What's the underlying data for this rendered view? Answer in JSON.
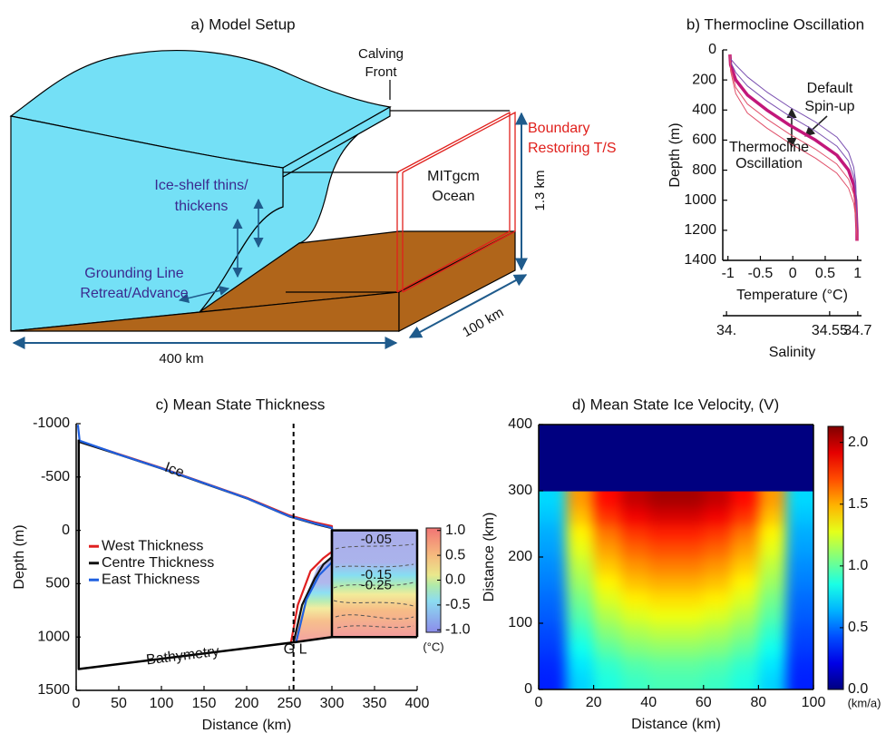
{
  "diagram": {
    "title": "a) Model Setup",
    "calving_front": [
      "Calving",
      "Front"
    ],
    "boundary": [
      "Boundary",
      "Restoring T/S"
    ],
    "ocean": [
      "MITgcm",
      "Ocean"
    ],
    "height": "1.3 km",
    "ice_shelf": [
      "Ice-shelf thins/",
      "thickens"
    ],
    "grounding_line": [
      "Grounding Line",
      "Retreat/Advance"
    ],
    "length": "400 km",
    "width": "100 km"
  },
  "chart_data": [
    {
      "type": "line",
      "title": "b) Thermocline Oscillation",
      "xlabel": "Temperature (°C)",
      "ylabel": "Depth (m)",
      "xlim": [
        -1.08,
        1.06
      ],
      "xticks": [
        -1,
        -0.5,
        0,
        0.5,
        1
      ],
      "ylim": [
        0,
        1400
      ],
      "yticks": [
        0,
        200,
        400,
        600,
        800,
        1000,
        1200,
        1400
      ],
      "invert_y": true,
      "x2label": "Salinity",
      "x2lim": [
        33.98,
        34.72
      ],
      "x2ticks": [
        {
          "value": 34,
          "label": "34."
        },
        34.55,
        34.7
      ],
      "annotations": [
        "Default",
        "Spin-up",
        "Thermocline",
        "Oscillation"
      ],
      "series": [
        {
          "color": "#c2177a",
          "x": [
            -0.97,
            -0.96,
            -0.88,
            -0.7,
            -0.4,
            -0.05,
            0.35,
            0.68,
            0.86,
            0.94,
            0.97,
            0.98,
            0.99,
            0.99
          ],
          "values": [
            30,
            100,
            200,
            300,
            400,
            500,
            600,
            700,
            800,
            900,
            1000,
            1100,
            1200,
            1270
          ]
        },
        {
          "color": "#7a4fb0",
          "x": [
            -0.97,
            -0.96,
            -0.88,
            -0.7,
            -0.4,
            -0.05,
            0.35,
            0.68,
            0.86,
            0.94,
            0.97,
            0.98,
            0.99,
            0.99
          ],
          "values": [
            30,
            60,
            100,
            180,
            280,
            380,
            480,
            580,
            680,
            780,
            880,
            1000,
            1150,
            1270
          ]
        },
        {
          "color": "#7a4fb0",
          "x": [
            -0.97,
            -0.96,
            -0.88,
            -0.7,
            -0.4,
            -0.05,
            0.35,
            0.68,
            0.86,
            0.94,
            0.97,
            0.98,
            0.99,
            0.99
          ],
          "values": [
            30,
            80,
            150,
            240,
            340,
            440,
            540,
            640,
            740,
            840,
            940,
            1050,
            1170,
            1270
          ]
        },
        {
          "color": "#e0506a",
          "x": [
            -0.97,
            -0.96,
            -0.88,
            -0.7,
            -0.4,
            -0.05,
            0.35,
            0.68,
            0.86,
            0.94,
            0.97,
            0.98,
            0.99,
            0.99
          ],
          "values": [
            30,
            120,
            250,
            360,
            460,
            560,
            660,
            760,
            860,
            960,
            1060,
            1150,
            1230,
            1270
          ]
        },
        {
          "color": "#e0506a",
          "x": [
            -0.97,
            -0.96,
            -0.88,
            -0.7,
            -0.4,
            -0.05,
            0.35,
            0.68,
            0.86,
            0.94,
            0.97,
            0.98,
            0.99,
            0.99
          ],
          "values": [
            30,
            140,
            290,
            420,
            520,
            620,
            720,
            820,
            920,
            1020,
            1110,
            1190,
            1250,
            1270
          ]
        }
      ]
    },
    {
      "type": "line",
      "title": "c) Mean State Thickness",
      "xlabel": "Distance (km)",
      "ylabel": "Depth (m)",
      "xlim": [
        0,
        400
      ],
      "xticks": [
        0,
        50,
        100,
        150,
        200,
        250,
        300,
        350,
        400
      ],
      "ylim": [
        -1000,
        1500
      ],
      "yticks": [
        -1000,
        -500,
        0,
        500,
        1000,
        1500
      ],
      "invert_y": true,
      "legend": "center left",
      "gl_x": 255,
      "annotations": [
        "Ice",
        "Bathymetry",
        "G L"
      ],
      "contour_labels": [
        "-0.05",
        "-0.15",
        "-0.25"
      ],
      "colorbar": {
        "clim": [
          -1.05,
          1.05
        ],
        "label": "(°C)",
        "ticks": [
          {
            "value": 1,
            "label": "1.0"
          },
          0.5,
          {
            "value": 0,
            "label": "0.0"
          },
          -0.5,
          {
            "value": -1,
            "label": "-1.0"
          }
        ]
      },
      "series": [
        {
          "name": "West Thickness",
          "color": "#e02020",
          "x": [
            3,
            50,
            100,
            150,
            200,
            250,
            280,
            300,
            300,
            290,
            275,
            260,
            252
          ],
          "values": [
            -835,
            -715,
            -585,
            -445,
            -305,
            -140,
            -75,
            -40,
            200,
            260,
            380,
            700,
            1050
          ]
        },
        {
          "name": "Centre Thickness",
          "color": "#111111",
          "x": [
            3,
            50,
            100,
            150,
            200,
            250,
            280,
            300,
            300,
            290,
            280,
            265,
            255
          ],
          "values": [
            -830,
            -710,
            -580,
            -440,
            -300,
            -130,
            -60,
            -20,
            250,
            320,
            450,
            700,
            1050
          ]
        },
        {
          "name": "East Thickness",
          "color": "#2060e0",
          "x": [
            2,
            4,
            50,
            100,
            150,
            200,
            250,
            280,
            300,
            300,
            285,
            270,
            258
          ],
          "values": [
            -990,
            -840,
            -712,
            -582,
            -442,
            -302,
            -132,
            -65,
            -25,
            300,
            420,
            650,
            1050
          ]
        },
        {
          "color": "#000000",
          "x": [
            3,
            3,
            255,
            300,
            400
          ],
          "values": [
            -850,
            1300,
            1050,
            1000,
            1000
          ]
        },
        {
          "color": "#000000",
          "x": [
            300,
            300,
            400,
            400
          ],
          "values": [
            1000,
            0,
            0,
            1000
          ]
        }
      ]
    },
    {
      "type": "heatmap",
      "title": "d) Mean State Ice Velocity, (V)",
      "xlabel": "Distance (km)",
      "ylabel": "Distance (km)",
      "xlim": [
        0,
        100
      ],
      "xticks": [
        0,
        20,
        40,
        60,
        80,
        100
      ],
      "ylim": [
        0,
        400
      ],
      "yticks": [
        0,
        100,
        200,
        300,
        400
      ],
      "colormap": "jet",
      "colorbar": {
        "clim": [
          0,
          2.13
        ],
        "label": "(km/a)",
        "ticks": [
          {
            "value": 0,
            "label": "0.0"
          },
          0.5,
          {
            "value": 1,
            "label": "1.0"
          },
          1.5,
          {
            "value": 2,
            "label": "2.0"
          }
        ]
      },
      "x_bins": [
        0,
        10,
        20,
        30,
        40,
        50,
        60,
        70,
        80,
        90,
        100
      ],
      "y_bins": [
        0,
        25,
        50,
        75,
        100,
        125,
        150,
        175,
        200,
        225,
        250,
        275,
        300,
        350,
        400
      ],
      "values": [
        [
          0.33,
          0.71,
          0.86,
          0.92,
          0.95,
          0.95,
          0.92,
          0.86,
          0.71,
          0.33
        ],
        [
          0.35,
          0.75,
          0.9,
          0.97,
          1,
          1,
          0.97,
          0.9,
          0.75,
          0.35
        ],
        [
          0.39,
          0.83,
          0.99,
          1.07,
          1.1,
          1.1,
          1.07,
          0.99,
          0.83,
          0.39
        ],
        [
          0.42,
          0.9,
          1.08,
          1.16,
          1.2,
          1.2,
          1.16,
          1.08,
          0.9,
          0.42
        ],
        [
          0.46,
          0.98,
          1.17,
          1.26,
          1.3,
          1.3,
          1.26,
          1.17,
          0.98,
          0.46
        ],
        [
          0.49,
          1.05,
          1.26,
          1.36,
          1.4,
          1.4,
          1.36,
          1.26,
          1.05,
          0.49
        ],
        [
          0.53,
          1.13,
          1.35,
          1.46,
          1.5,
          1.5,
          1.46,
          1.35,
          1.13,
          0.53
        ],
        [
          0.56,
          1.2,
          1.44,
          1.55,
          1.6,
          1.6,
          1.55,
          1.44,
          1.2,
          0.56
        ],
        [
          0.6,
          1.28,
          1.53,
          1.65,
          1.7,
          1.7,
          1.65,
          1.53,
          1.28,
          0.6
        ],
        [
          0.63,
          1.35,
          1.62,
          1.75,
          1.8,
          1.8,
          1.75,
          1.62,
          1.35,
          0.63
        ],
        [
          0.68,
          1.46,
          1.76,
          1.89,
          1.95,
          1.95,
          1.89,
          1.76,
          1.46,
          0.68
        ],
        [
          0.72,
          1.54,
          1.85,
          1.99,
          2.05,
          2.05,
          1.99,
          1.85,
          1.54,
          0.72
        ],
        [
          0,
          0,
          0,
          0,
          0,
          0,
          0,
          0,
          0,
          0
        ],
        [
          0,
          0,
          0,
          0,
          0,
          0,
          0,
          0,
          0,
          0
        ]
      ]
    }
  ]
}
